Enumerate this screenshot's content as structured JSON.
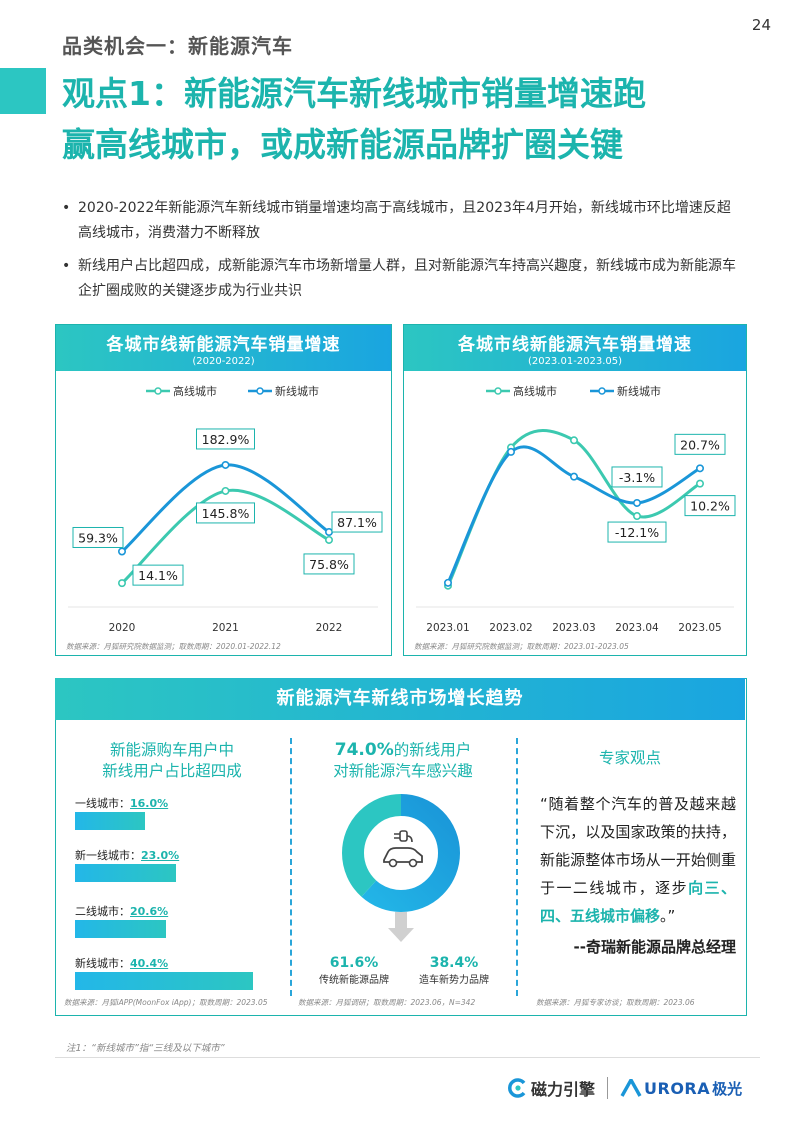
{
  "page_number": "24",
  "category": "品类机会一：新能源汽车",
  "headline_line1": "观点1：新能源汽车新线城市销量增速跑",
  "headline_line2": "赢高线城市，或成新能源品牌扩圈关键",
  "bullets": [
    "2020-2022年新能源汽车新线城市销量增速均高于高线城市，且2023年4月开始，新线城市环比增速反超高线城市，消费潜力不断释放",
    "新线用户占比超四成，成新能源汽车市场新增量人群，且对新能源汽车持高兴趣度，新线城市成为新能源车企扩圈成败的关键逐步成为行业共识"
  ],
  "left_chart_title": "各城市线新能源汽车销量增速",
  "left_chart_subtitle": "(2020-2022)",
  "right_chart_title": "各城市线新能源汽车销量增速",
  "right_chart_subtitle": "(2023.01-2023.05)",
  "legend": {
    "high": "高线城市",
    "new": "新线城市"
  },
  "colors": {
    "high": "#3cc9b0",
    "new": "#1a96d8",
    "accent": "#1cb4ad"
  },
  "left_source": "数据来源：月狐研究院数据监测；取数周期：2020.01-2022.12",
  "right_source": "数据来源：月狐研究院数据监测；取数周期：2023.01-2023.05",
  "chart_data": [
    {
      "type": "line",
      "title": "各城市线新能源汽车销量增速",
      "subtitle": "(2020-2022)",
      "categories": [
        "2020",
        "2021",
        "2022"
      ],
      "series": [
        {
          "name": "高线城市",
          "values": [
            14.1,
            145.8,
            75.8
          ]
        },
        {
          "name": "新线城市",
          "values": [
            59.3,
            182.9,
            87.1
          ]
        }
      ],
      "data_labels": {
        "高线城市": [
          "14.1%",
          "145.8%",
          "75.8%"
        ],
        "新线城市": [
          "59.3%",
          "182.9%",
          "87.1%"
        ]
      }
    },
    {
      "type": "line",
      "title": "各城市线新能源汽车销量增速",
      "subtitle": "(2023.01-2023.05)",
      "categories": [
        "2023.01",
        "2023.02",
        "2023.03",
        "2023.04",
        "2023.05"
      ],
      "series": [
        {
          "name": "高线城市",
          "values": [
            -60,
            35,
            40,
            -12.1,
            10.2
          ]
        },
        {
          "name": "新线城市",
          "values": [
            -58,
            32,
            15,
            -3.1,
            20.7
          ]
        }
      ],
      "data_labels": {
        "高线城市": [
          "",
          "",
          "",
          "-12.1%",
          "10.2%"
        ],
        "新线城市": [
          "",
          "",
          "",
          "-3.1%",
          "20.7%"
        ]
      }
    }
  ],
  "bottom_title": "新能源汽车新线市场增长趋势",
  "col1": {
    "title_line1": "新能源购车用户中",
    "title_line2": "新线用户占比超四成",
    "bars": [
      {
        "label": "一线城市：",
        "value": "16.0%",
        "pct": 16.0
      },
      {
        "label": "新一线城市：",
        "value": "23.0%",
        "pct": 23.0
      },
      {
        "label": "二线城市：",
        "value": "20.6%",
        "pct": 20.6
      },
      {
        "label": "新线城市：",
        "value": "40.4%",
        "pct": 40.4
      }
    ],
    "source": "数据来源：月狐iAPP(MoonFox iApp)；取数周期：2023.05"
  },
  "col2": {
    "title_pct": "74.0%",
    "title_rest": "的新线用户",
    "title_line2": "对新能源汽车感兴趣",
    "share_traditional": 61.6,
    "share_new": 38.4,
    "traditional_value": "61.6%",
    "traditional_label": "传统新能源品牌",
    "new_value": "38.4%",
    "new_label": "造车新势力品牌",
    "source": "数据来源：月狐调研；取数周期：2023.06，N=342"
  },
  "col3": {
    "title": "专家观点",
    "quote_text": "“随着整个汽车的普及越来越下沉，以及国家政策的扶持，新能源整体市场从一开始侧重于一二线城市，逐步",
    "quote_highlight": "向三、四、五线城市偏移",
    "quote_end": "。”",
    "attribution": "--奇瑞新能源品牌总经理",
    "source": "数据来源：月狐专家访谈；取数周期：2023.06"
  },
  "footnote": "注1：“新线城市”指“三线及以下城市”",
  "footer": {
    "brand1": "磁力引擎",
    "brand2": "URORA",
    "brand2_cn": "极光"
  }
}
